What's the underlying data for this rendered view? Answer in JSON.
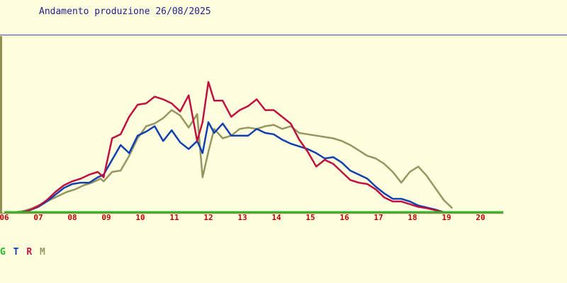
{
  "chart_data": {
    "type": "line",
    "title": "Andamento produzione 26/08/2025",
    "xlabel": "",
    "ylabel": "",
    "x_ticks": [
      "06",
      "07",
      "08",
      "09",
      "10",
      "11",
      "12",
      "13",
      "14",
      "15",
      "16",
      "17",
      "18",
      "19",
      "20"
    ],
    "xlim": [
      6,
      20.67
    ],
    "ylim": [
      0,
      1
    ],
    "grid": false,
    "colors": {
      "background": "#FFFFE0",
      "title": "#1E1E8C",
      "tick_labels": "#C00000",
      "axis": "#8F8F50"
    },
    "legend": [
      {
        "label": "G",
        "color": "#22BB22"
      },
      {
        "label": "T",
        "color": "#1040B0"
      },
      {
        "label": "R",
        "color": "#C0103F"
      },
      {
        "label": "M",
        "color": "#959560"
      }
    ],
    "series": [
      {
        "color": "#22BB22",
        "x": [
          6,
          20.67
        ],
        "y": [
          0,
          0
        ]
      },
      {
        "color": "#1040B0",
        "x": [
          6.5,
          6.75,
          7.0,
          7.25,
          7.5,
          7.75,
          8.0,
          8.25,
          8.5,
          8.75,
          8.92,
          9.17,
          9.42,
          9.67,
          9.92,
          10.17,
          10.42,
          10.67,
          10.92,
          11.17,
          11.42,
          11.67,
          11.83,
          12.0,
          12.17,
          12.42,
          12.67,
          12.92,
          13.17,
          13.42,
          13.67,
          13.92,
          14.17,
          14.42,
          14.67,
          14.92,
          15.17,
          15.42,
          15.67,
          15.92,
          16.17,
          16.42,
          16.67,
          16.92,
          17.17,
          17.42,
          17.67,
          17.92,
          18.17,
          18.42,
          18.67,
          18.92
        ],
        "y": [
          0.0,
          0.015,
          0.04,
          0.08,
          0.13,
          0.18,
          0.21,
          0.22,
          0.22,
          0.26,
          0.28,
          0.39,
          0.5,
          0.44,
          0.57,
          0.6,
          0.64,
          0.53,
          0.61,
          0.52,
          0.47,
          0.53,
          0.44,
          0.67,
          0.59,
          0.66,
          0.57,
          0.57,
          0.57,
          0.62,
          0.59,
          0.58,
          0.54,
          0.51,
          0.49,
          0.47,
          0.44,
          0.4,
          0.41,
          0.37,
          0.31,
          0.28,
          0.25,
          0.19,
          0.14,
          0.1,
          0.1,
          0.08,
          0.05,
          0.035,
          0.02,
          0.0
        ]
      },
      {
        "color": "#C0103F",
        "x": [
          6.5,
          6.75,
          7.0,
          7.25,
          7.5,
          7.75,
          8.0,
          8.25,
          8.5,
          8.75,
          8.92,
          9.17,
          9.42,
          9.67,
          9.92,
          10.17,
          10.42,
          10.67,
          10.92,
          11.17,
          11.42,
          11.67,
          11.83,
          12.0,
          12.17,
          12.42,
          12.67,
          12.92,
          13.17,
          13.42,
          13.67,
          13.92,
          14.17,
          14.42,
          14.67,
          14.92,
          15.17,
          15.42,
          15.67,
          15.92,
          16.17,
          16.42,
          16.67,
          16.92,
          17.17,
          17.42,
          17.67,
          17.92,
          18.17,
          18.42,
          18.67,
          18.92
        ],
        "y": [
          0.0,
          0.015,
          0.045,
          0.09,
          0.15,
          0.2,
          0.23,
          0.25,
          0.28,
          0.3,
          0.26,
          0.55,
          0.58,
          0.71,
          0.8,
          0.81,
          0.86,
          0.84,
          0.81,
          0.75,
          0.87,
          0.53,
          0.67,
          0.97,
          0.83,
          0.83,
          0.71,
          0.76,
          0.79,
          0.84,
          0.76,
          0.76,
          0.71,
          0.66,
          0.54,
          0.45,
          0.34,
          0.39,
          0.36,
          0.3,
          0.24,
          0.22,
          0.21,
          0.17,
          0.11,
          0.08,
          0.08,
          0.06,
          0.04,
          0.03,
          0.015,
          0.0
        ]
      },
      {
        "color": "#959560",
        "x": [
          6.33,
          6.58,
          6.83,
          7.08,
          7.33,
          7.58,
          7.83,
          8.08,
          8.33,
          8.58,
          8.83,
          8.92,
          9.17,
          9.42,
          9.67,
          9.92,
          10.17,
          10.42,
          10.67,
          10.92,
          11.17,
          11.42,
          11.67,
          11.83,
          12.0,
          12.17,
          12.42,
          12.67,
          12.92,
          13.17,
          13.42,
          13.67,
          13.92,
          14.17,
          14.42,
          14.67,
          14.92,
          15.17,
          15.42,
          15.67,
          15.92,
          16.17,
          16.42,
          16.67,
          16.92,
          17.17,
          17.42,
          17.67,
          17.92,
          18.17,
          18.42,
          18.67,
          18.92,
          19.17
        ],
        "y": [
          0.0,
          0.01,
          0.03,
          0.06,
          0.09,
          0.12,
          0.15,
          0.17,
          0.2,
          0.22,
          0.25,
          0.23,
          0.3,
          0.31,
          0.42,
          0.55,
          0.64,
          0.66,
          0.7,
          0.76,
          0.72,
          0.63,
          0.73,
          0.26,
          0.45,
          0.62,
          0.55,
          0.57,
          0.62,
          0.63,
          0.62,
          0.64,
          0.65,
          0.62,
          0.64,
          0.59,
          0.58,
          0.57,
          0.56,
          0.55,
          0.53,
          0.5,
          0.46,
          0.42,
          0.4,
          0.36,
          0.3,
          0.22,
          0.3,
          0.34,
          0.27,
          0.18,
          0.09,
          0.03
        ]
      }
    ]
  }
}
